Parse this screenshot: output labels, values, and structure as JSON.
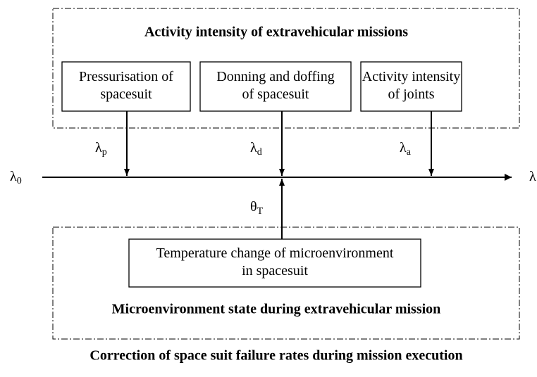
{
  "top_group": {
    "title": "Activity intensity of extravehicular missions",
    "nodes": [
      {
        "lines": [
          "Pressurisation of",
          "spacesuit"
        ],
        "rate": {
          "symbol": "λ",
          "subscript": "p"
        }
      },
      {
        "lines": [
          "Donning and doffing",
          "of spacesuit"
        ],
        "rate": {
          "symbol": "λ",
          "subscript": "d"
        }
      },
      {
        "lines": [
          "Activity intensity",
          "of joints"
        ],
        "rate": {
          "symbol": "λ",
          "subscript": "a"
        }
      }
    ]
  },
  "axis": {
    "start": {
      "symbol": "λ",
      "subscript": "0"
    },
    "end": {
      "symbol": "λ"
    }
  },
  "bottom_group": {
    "title": "Microenvironment state during extravehicular mission",
    "node": {
      "lines": [
        "Temperature change of microenvironment",
        "in spacesuit"
      ],
      "rate": {
        "symbol": "θ",
        "subscript": "T"
      }
    }
  },
  "caption": "Correction of space suit failure rates during mission execution"
}
